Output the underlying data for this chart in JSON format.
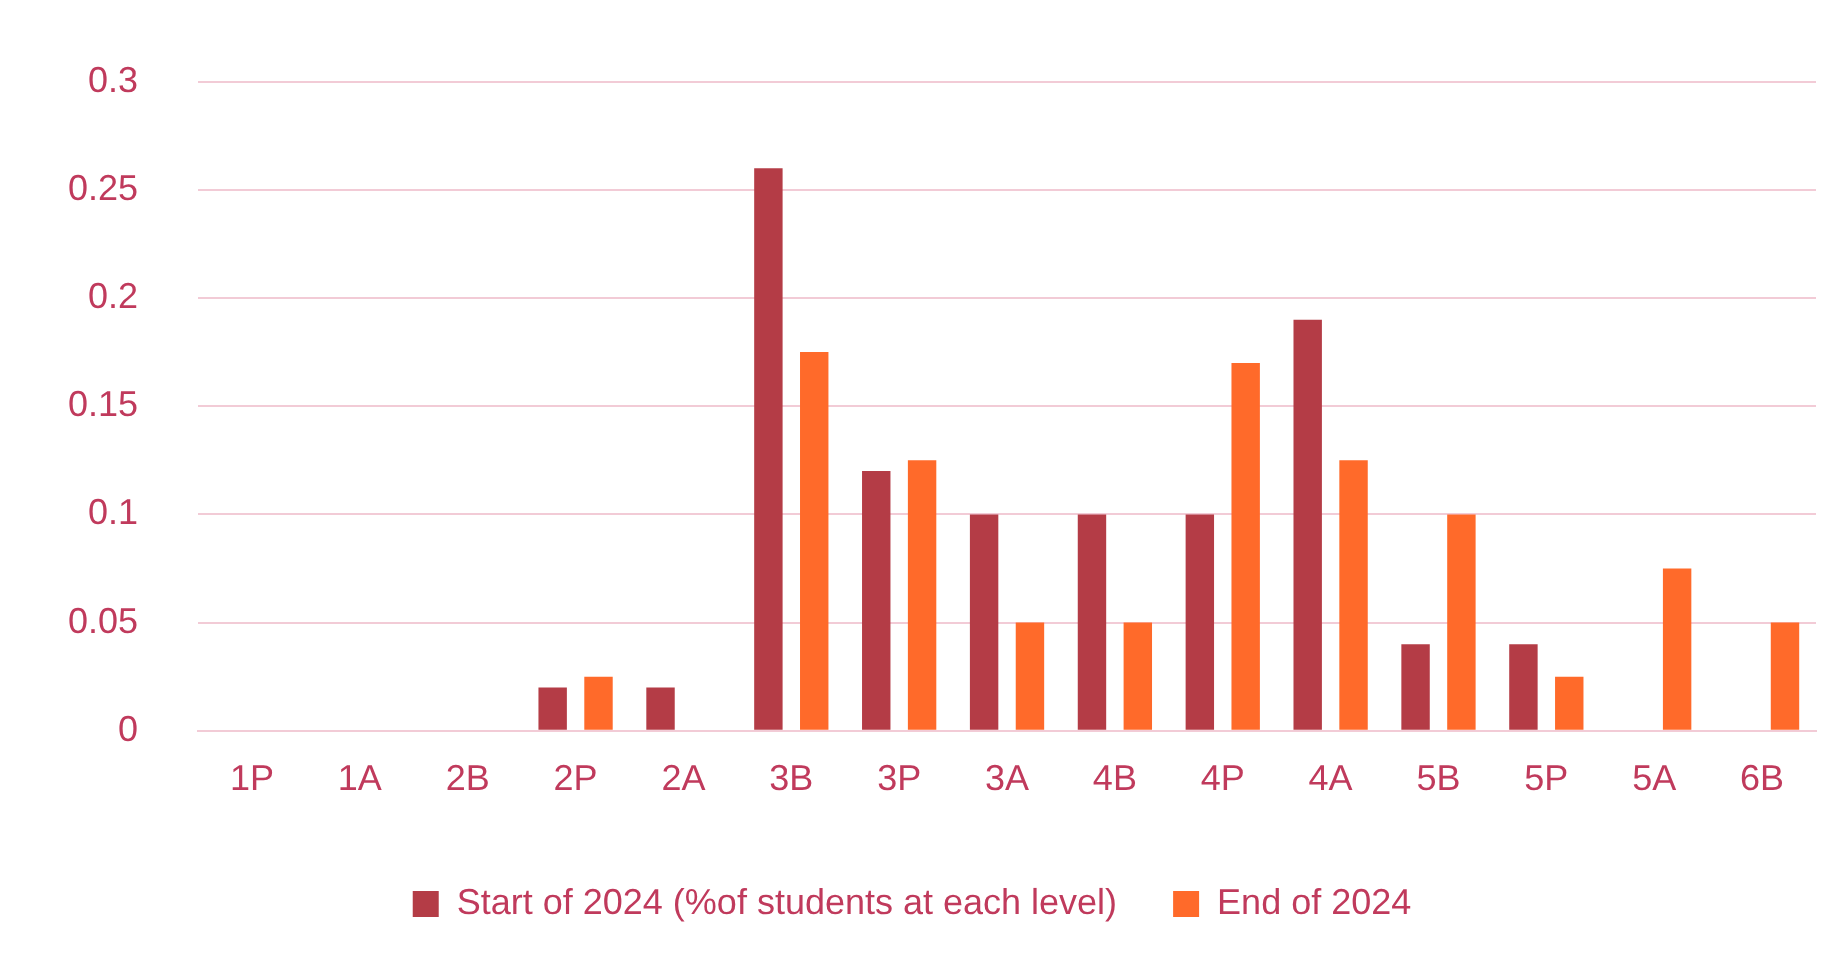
{
  "chart_data": {
    "type": "bar",
    "categories": [
      "1P",
      "1A",
      "2B",
      "2P",
      "2A",
      "3B",
      "3P",
      "3A",
      "4B",
      "4P",
      "4A",
      "5B",
      "5P",
      "5A",
      "6B"
    ],
    "series": [
      {
        "name": "Start of 2024 (%of students at each level)",
        "color": "#b43c46",
        "values": [
          0,
          0,
          0,
          0.02,
          0.02,
          0.26,
          0.12,
          0.1,
          0.1,
          0.1,
          0.19,
          0.04,
          0.04,
          0,
          0
        ]
      },
      {
        "name": "End of 2024",
        "color": "#ff6a2a",
        "values": [
          0,
          0,
          0,
          0.025,
          0,
          0.175,
          0.125,
          0.05,
          0.05,
          0.17,
          0.125,
          0.1,
          0.025,
          0.075,
          0.05
        ]
      }
    ],
    "ylim": [
      0,
      0.3
    ],
    "yticks": [
      0,
      0.05,
      0.1,
      0.15,
      0.2,
      0.25,
      0.3
    ],
    "grid": "y",
    "legend": "bottom"
  }
}
